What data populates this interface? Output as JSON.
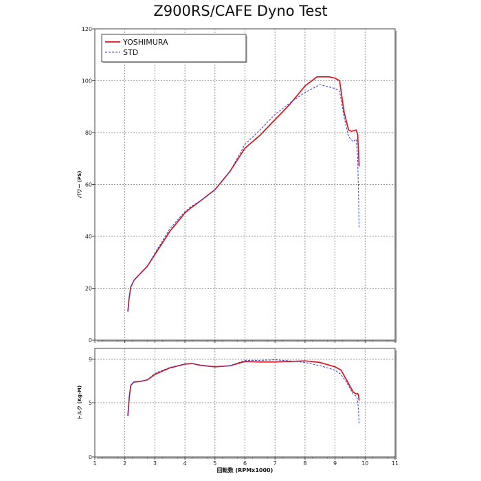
{
  "title": "Z900RS/CAFE Dyno Test",
  "colors": {
    "yoshimura": "#e0121b",
    "std": "#2a3fd6",
    "grid": "#777777",
    "frame": "#444444"
  },
  "chart_data": [
    {
      "type": "line",
      "title": "Z900RS/CAFE Dyno Test",
      "xlabel": "",
      "ylabel": "パワー (PS)",
      "xlim": [
        1,
        11
      ],
      "ylim": [
        0,
        120
      ],
      "x_ticks": [
        1,
        2,
        3,
        4,
        5,
        6,
        7,
        8,
        9,
        10,
        11
      ],
      "y_ticks": [
        0,
        20,
        40,
        60,
        80,
        100,
        120
      ],
      "grid": true,
      "legend": "top-left",
      "series": [
        {
          "name": "YOSHIMURA",
          "style": "solid",
          "x": [
            2.1,
            2.14,
            2.2,
            2.3,
            2.5,
            2.75,
            3.0,
            3.5,
            4.0,
            4.2,
            4.5,
            5.0,
            5.5,
            6.0,
            6.5,
            7.0,
            7.5,
            8.0,
            8.4,
            8.8,
            9.0,
            9.15,
            9.3,
            9.45,
            9.55,
            9.7,
            9.75,
            9.78,
            9.8
          ],
          "y": [
            11,
            16,
            20.5,
            23,
            25.5,
            28.5,
            33,
            42,
            49,
            51,
            53.5,
            58,
            65,
            74,
            79,
            85,
            91,
            98,
            101.5,
            101.5,
            101,
            100,
            88,
            81,
            80.5,
            81,
            79.5,
            73,
            67
          ]
        },
        {
          "name": "STD",
          "style": "dashed",
          "x": [
            2.1,
            2.14,
            2.2,
            2.3,
            2.5,
            2.75,
            3.0,
            3.5,
            4.0,
            4.2,
            4.5,
            5.0,
            5.5,
            6.0,
            6.5,
            7.0,
            7.5,
            8.0,
            8.5,
            9.0,
            9.15,
            9.3,
            9.45,
            9.6,
            9.7,
            9.75,
            9.78,
            9.8
          ],
          "y": [
            11,
            16,
            20.5,
            23,
            25.5,
            28.5,
            33.5,
            43,
            49.5,
            51.5,
            53.5,
            58,
            65,
            75.5,
            81,
            87,
            91.5,
            95.5,
            98.5,
            97,
            96,
            86,
            78.5,
            76.5,
            77.5,
            71,
            57,
            43
          ]
        }
      ]
    },
    {
      "type": "line",
      "xlabel": "回転数 (RPMx1000)",
      "ylabel": "トルク (Kg-M)",
      "xlim": [
        1,
        11
      ],
      "ylim": [
        0,
        10
      ],
      "x_ticks": [
        1,
        2,
        3,
        4,
        5,
        6,
        7,
        8,
        9,
        10,
        11
      ],
      "y_ticks": [
        0,
        5,
        9
      ],
      "grid": true,
      "series": [
        {
          "name": "YOSHIMURA",
          "style": "solid",
          "x": [
            2.1,
            2.15,
            2.2,
            2.3,
            2.5,
            2.75,
            3.0,
            3.5,
            4.0,
            4.25,
            4.5,
            5.0,
            5.5,
            6.0,
            6.5,
            7.0,
            7.5,
            8.0,
            8.5,
            9.0,
            9.2,
            9.4,
            9.6,
            9.7,
            9.75,
            9.78,
            9.8
          ],
          "y": [
            3.8,
            5.6,
            6.6,
            6.9,
            6.95,
            7.1,
            7.6,
            8.2,
            8.55,
            8.6,
            8.45,
            8.3,
            8.4,
            8.8,
            8.75,
            8.75,
            8.8,
            8.85,
            8.7,
            8.3,
            8.0,
            7.0,
            6.0,
            5.8,
            5.85,
            5.7,
            5.2
          ]
        },
        {
          "name": "STD",
          "style": "dashed",
          "x": [
            2.1,
            2.15,
            2.2,
            2.3,
            2.5,
            2.75,
            3.0,
            3.5,
            4.0,
            4.25,
            4.5,
            5.0,
            5.5,
            6.0,
            6.5,
            7.0,
            7.5,
            8.0,
            8.5,
            9.0,
            9.2,
            9.4,
            9.6,
            9.7,
            9.75,
            9.78,
            9.8
          ],
          "y": [
            3.8,
            5.6,
            6.6,
            6.9,
            6.95,
            7.1,
            7.7,
            8.25,
            8.55,
            8.6,
            8.45,
            8.3,
            8.4,
            8.9,
            8.9,
            8.95,
            8.85,
            8.7,
            8.4,
            8.0,
            7.6,
            6.8,
            5.8,
            5.6,
            5.3,
            4.3,
            3.0
          ]
        }
      ]
    }
  ]
}
